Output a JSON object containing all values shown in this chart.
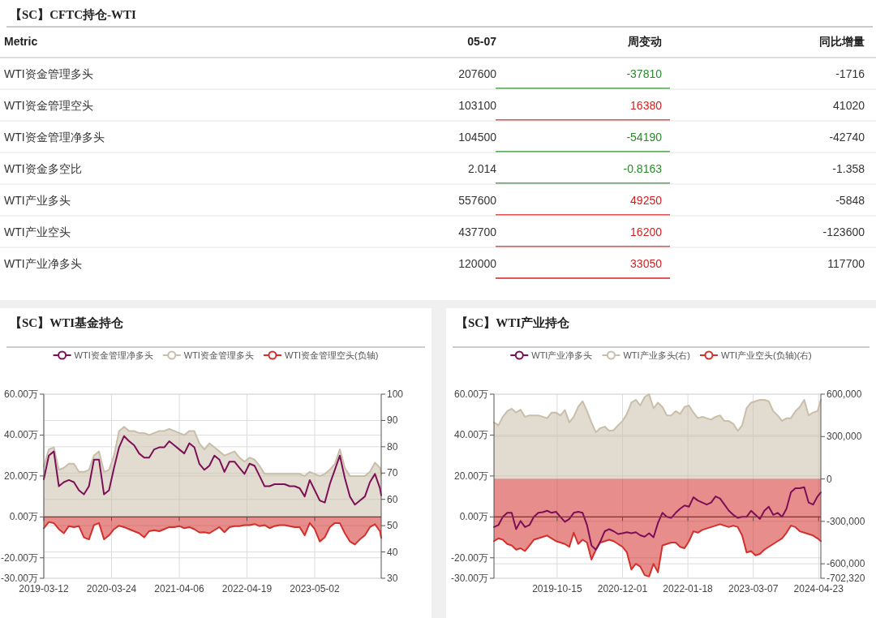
{
  "chart_data": [
    {
      "type": "other",
      "title": "【SC】CFTC持仓-WTI",
      "annotations": [
        "Metric"
      ],
      "data_labels": true,
      "categories": [
        "WTI资金管理多头",
        "WTI资金管理空头",
        "WTI资金管理净多头",
        "WTI资金多空比",
        "WTI产业多头",
        "WTI产业空头",
        "WTI产业净多头"
      ],
      "series": [
        {
          "name": "05-07",
          "values": [
            207600,
            103100,
            104500,
            2.014,
            557600,
            437700,
            120000
          ]
        },
        {
          "name": "周变动",
          "colors": [
            "#2a8a2a",
            "#d42020",
            "#2a8a2a",
            "#2a8a2a",
            "#d42020",
            "#d42020",
            "#d42020"
          ],
          "values": [
            -37810,
            16380,
            -54190,
            -0.8163,
            49250,
            16200,
            33050
          ]
        },
        {
          "name": "同比增量",
          "values": [
            -1716,
            41020,
            -42740,
            -1.358,
            -5848,
            -123600,
            117700
          ]
        }
      ]
    },
    {
      "type": "line",
      "title": "【SC】WTI基金持仓",
      "legend": "top",
      "grid": true,
      "xlim": [
        "2019-03-12",
        "2024-05-07"
      ],
      "xticks": [
        "2019-03-12",
        "2020-03-24",
        "2021-04-06",
        "2022-04-19",
        "2023-05-02"
      ],
      "ylim": [
        -30,
        60
      ],
      "yticks": [
        {
          "value": 60,
          "label": "60.00万"
        },
        {
          "value": 40,
          "label": "40.00万"
        },
        {
          "value": 20,
          "label": "20.00万"
        },
        {
          "value": 0,
          "label": "0.00万"
        },
        {
          "value": -20,
          "label": "-20.00万"
        },
        {
          "value": -30,
          "label": "-30.00万"
        }
      ],
      "y2lim": [
        30,
        100
      ],
      "y2ticks": [
        30,
        40,
        50,
        60,
        70,
        80,
        90,
        100
      ],
      "x": [
        "2019-03-12",
        "2019-04-09",
        "2019-05-07",
        "2019-06-04",
        "2019-07-02",
        "2019-07-30",
        "2019-08-27",
        "2019-09-24",
        "2019-10-22",
        "2019-11-19",
        "2019-12-17",
        "2020-01-14",
        "2020-02-11",
        "2020-03-10",
        "2020-04-07",
        "2020-05-05",
        "2020-06-02",
        "2020-06-30",
        "2020-07-28",
        "2020-08-25",
        "2020-09-22",
        "2020-10-20",
        "2020-11-17",
        "2020-12-15",
        "2021-01-12",
        "2021-02-09",
        "2021-03-09",
        "2021-04-06",
        "2021-05-04",
        "2021-06-01",
        "2021-06-29",
        "2021-07-27",
        "2021-08-24",
        "2021-09-21",
        "2021-10-19",
        "2021-11-16",
        "2021-12-14",
        "2022-01-11",
        "2022-02-08",
        "2022-03-08",
        "2022-04-05",
        "2022-05-03",
        "2022-05-31",
        "2022-06-28",
        "2022-07-26",
        "2022-08-23",
        "2022-09-20",
        "2022-10-18",
        "2022-11-15",
        "2022-12-13",
        "2023-01-10",
        "2023-02-07",
        "2023-03-07",
        "2023-04-04",
        "2023-05-02",
        "2023-05-30",
        "2023-06-27",
        "2023-07-25",
        "2023-08-22",
        "2023-09-19",
        "2023-10-17",
        "2023-11-14",
        "2023-12-12",
        "2024-01-09",
        "2024-02-06",
        "2024-03-05",
        "2024-04-02",
        "2024-04-30",
        "2024-05-07"
      ],
      "series": [
        {
          "name": "WTI资金管理净多头",
          "type": "line",
          "color": "#7d0f57",
          "values": [
            18.4,
            30,
            32,
            15,
            17,
            18,
            17,
            13,
            11,
            15,
            28,
            28,
            11,
            13,
            24,
            34,
            39.5,
            37,
            35,
            31,
            29,
            29,
            33,
            34,
            34,
            37,
            35,
            33,
            31,
            36,
            34,
            26,
            23,
            25,
            30,
            28,
            22,
            27,
            27,
            24,
            21,
            26,
            25,
            20,
            15,
            15,
            16,
            16,
            16,
            15,
            15,
            14,
            10,
            18,
            13,
            8,
            7,
            16,
            23,
            30,
            19,
            10,
            6,
            8,
            10,
            17,
            21,
            14,
            10.5
          ]
        },
        {
          "name": "WTI资金管理多头",
          "type": "area",
          "color": "#c9bea9",
          "values": [
            24.4,
            33,
            34,
            23,
            24,
            26,
            26,
            22,
            22,
            23,
            30,
            32,
            22,
            23,
            30,
            42,
            44,
            42,
            42,
            41,
            41,
            40,
            41,
            42,
            42,
            43,
            42,
            41,
            40,
            42,
            42,
            36,
            33,
            36,
            34,
            32,
            30,
            31,
            32,
            29,
            27,
            29,
            28,
            25,
            21,
            21,
            21,
            21,
            21,
            21,
            21,
            21,
            20,
            22,
            21,
            20,
            21,
            23,
            26,
            33,
            24,
            20,
            20,
            20,
            20,
            22,
            26.5,
            24,
            20.8
          ]
        },
        {
          "name": "WTI资金管理空头(负轴)",
          "type": "area",
          "color": "#d3302c",
          "values": [
            -5.6,
            -2.5,
            -3,
            -6,
            -8,
            -4.5,
            -5,
            -4.5,
            -10,
            -11,
            -4,
            -3,
            -11,
            -9,
            -6,
            -4.3,
            -5,
            -6,
            -7,
            -8,
            -10,
            -7,
            -6.5,
            -7,
            -6,
            -5,
            -5,
            -4.5,
            -5.5,
            -5,
            -6,
            -7.6,
            -7.5,
            -8,
            -6.5,
            -5,
            -7.5,
            -5,
            -4.5,
            -4.5,
            -4,
            -4,
            -3.5,
            -4.5,
            -4,
            -5.5,
            -4.5,
            -4,
            -4,
            -4.5,
            -5,
            -5,
            -9,
            -3,
            -6,
            -12,
            -10,
            -5,
            -3,
            -3,
            -8,
            -12,
            -13.5,
            -11,
            -9,
            -5,
            -3.6,
            -7,
            -10.3
          ]
        }
      ],
      "ref_lines": [
        {
          "axis": "y",
          "value": 0,
          "color": "#6b3a3a"
        }
      ]
    },
    {
      "type": "line",
      "title": "【SC】WTI产业持仓",
      "legend": "top",
      "grid": true,
      "xlim": [
        "2018-09-11",
        "2024-05-07"
      ],
      "xticks": [
        "2019-10-15",
        "2020-12-01",
        "2022-01-18",
        "2023-03-07",
        "2024-04-23"
      ],
      "ylim": [
        -30,
        60
      ],
      "yticks": [
        {
          "value": 60,
          "label": "60.00万"
        },
        {
          "value": 40,
          "label": "40.00万"
        },
        {
          "value": 20,
          "label": "20.00万"
        },
        {
          "value": 0,
          "label": "0.00万"
        },
        {
          "value": -20,
          "label": "-20.00万"
        },
        {
          "value": -30,
          "label": "-30.00万"
        }
      ],
      "y2lim": [
        -702320,
        600000
      ],
      "y2ticks": [
        {
          "value": 600000,
          "label": "600,000"
        },
        {
          "value": 300000,
          "label": "300,000"
        },
        {
          "value": 0,
          "label": "0"
        },
        {
          "value": -300000,
          "label": "-300,000"
        },
        {
          "value": -600000,
          "label": "-600,000"
        },
        {
          "value": -702320,
          "label": "-702,320"
        }
      ],
      "x": [
        "2018-09-11",
        "2018-10-09",
        "2018-11-06",
        "2018-12-04",
        "2019-01-01",
        "2019-01-29",
        "2019-02-26",
        "2019-03-26",
        "2019-04-23",
        "2019-05-21",
        "2019-06-18",
        "2019-07-16",
        "2019-08-13",
        "2019-09-10",
        "2019-10-08",
        "2019-11-05",
        "2019-12-03",
        "2019-12-31",
        "2020-01-28",
        "2020-02-25",
        "2020-03-24",
        "2020-04-21",
        "2020-05-19",
        "2020-06-16",
        "2020-07-14",
        "2020-08-11",
        "2020-09-08",
        "2020-10-06",
        "2020-11-03",
        "2020-12-01",
        "2020-12-29",
        "2021-01-26",
        "2021-02-23",
        "2021-03-23",
        "2021-04-20",
        "2021-05-18",
        "2021-06-15",
        "2021-07-13",
        "2021-08-10",
        "2021-09-07",
        "2021-10-05",
        "2021-11-02",
        "2021-11-30",
        "2021-12-28",
        "2022-01-25",
        "2022-02-22",
        "2022-03-22",
        "2022-04-19",
        "2022-05-17",
        "2022-06-14",
        "2022-07-12",
        "2022-08-09",
        "2022-09-06",
        "2022-10-04",
        "2022-11-01",
        "2022-11-29",
        "2022-12-27",
        "2023-01-24",
        "2023-02-21",
        "2023-03-21",
        "2023-04-18",
        "2023-05-16",
        "2023-06-13",
        "2023-07-11",
        "2023-08-08",
        "2023-09-05",
        "2023-10-03",
        "2023-10-31",
        "2023-11-28",
        "2023-12-26",
        "2024-01-23",
        "2024-02-20",
        "2024-03-19",
        "2024-04-16",
        "2024-05-07"
      ],
      "ref_lines": [
        {
          "axis": "y",
          "value": 0,
          "color": "#6b3a3a"
        }
      ],
      "series": [
        {
          "name": "WTI产业净多头",
          "type": "line",
          "color": "#7d0f57",
          "values": [
            -5,
            -4,
            0,
            2,
            2,
            -6,
            -2,
            -5,
            -4,
            0,
            2,
            2.3,
            3,
            2,
            2.5,
            0,
            -2.4,
            -1,
            2,
            2.5,
            2,
            -4,
            -14,
            -16,
            -12,
            -7,
            -6,
            -7,
            -8.4,
            -8,
            -7.5,
            -8,
            -7.5,
            -9,
            -9.7,
            -8,
            -10,
            -3,
            2,
            0,
            -0.5,
            2,
            4,
            5.6,
            5,
            9.6,
            8,
            7,
            6,
            7,
            10,
            9,
            6,
            3,
            1,
            -0.5,
            0,
            0,
            3,
            1,
            -1,
            3,
            5,
            1,
            2,
            0,
            4,
            12,
            14,
            14,
            14.5,
            7,
            6,
            10,
            12
          ]
        },
        {
          "name": "WTI产业多头(右)",
          "type": "area",
          "axis": "y2",
          "color": "#c9bea9",
          "values": [
            400000,
            380000,
            440000,
            480000,
            497000,
            470000,
            490000,
            440000,
            450000,
            450000,
            450000,
            440000,
            430000,
            470000,
            470000,
            450000,
            488000,
            400000,
            440000,
            510000,
            550000,
            480000,
            400000,
            330000,
            360000,
            370000,
            340000,
            345000,
            380000,
            410000,
            460000,
            540000,
            560000,
            520000,
            580000,
            600000,
            500000,
            540000,
            510000,
            450000,
            450000,
            480000,
            460000,
            510000,
            520000,
            470000,
            430000,
            440000,
            430000,
            420000,
            440000,
            450000,
            410000,
            410000,
            390000,
            340000,
            380000,
            500000,
            540000,
            550000,
            560000,
            560000,
            550000,
            480000,
            450000,
            410000,
            430000,
            430000,
            480000,
            510000,
            560000,
            450000,
            470000,
            480000,
            560000
          ]
        },
        {
          "name": "WTI产业空头(负轴)(右)",
          "type": "area",
          "axis": "y2",
          "color": "#d3302c",
          "values": [
            -440000,
            -420000,
            -430000,
            -460000,
            -470000,
            -500000,
            -490000,
            -510000,
            -470000,
            -430000,
            -420000,
            -410000,
            -400000,
            -420000,
            -440000,
            -450000,
            -460000,
            -480000,
            -380000,
            -460000,
            -430000,
            -450000,
            -570000,
            -500000,
            -450000,
            -440000,
            -430000,
            -440000,
            -460000,
            -480000,
            -520000,
            -640000,
            -600000,
            -620000,
            -680000,
            -690000,
            -600000,
            -660000,
            -470000,
            -460000,
            -450000,
            -450000,
            -480000,
            -490000,
            -440000,
            -370000,
            -380000,
            -360000,
            -350000,
            -340000,
            -330000,
            -320000,
            -330000,
            -340000,
            -330000,
            -340000,
            -400000,
            -520000,
            -510000,
            -540000,
            -530000,
            -500000,
            -480000,
            -460000,
            -440000,
            -420000,
            -380000,
            -330000,
            -340000,
            -370000,
            -380000,
            -390000,
            -400000,
            -420000,
            -440000
          ]
        }
      ]
    }
  ]
}
